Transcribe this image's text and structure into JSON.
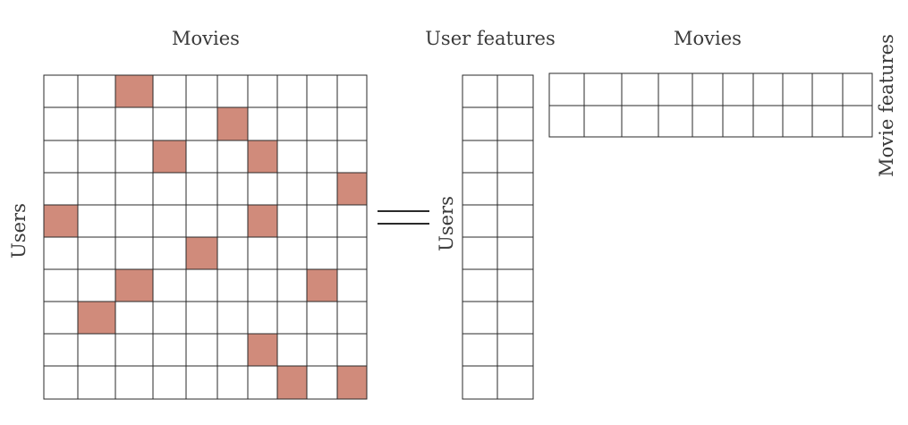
{
  "labels": {
    "ratings_top": "Movies",
    "ratings_side": "Users",
    "user_top": "User features",
    "user_side": "Users",
    "movie_top": "Movies",
    "movie_side": "Movie features"
  },
  "ratings_matrix": {
    "rows": 10,
    "cols": 10,
    "filled": [
      [
        0,
        2
      ],
      [
        1,
        5
      ],
      [
        2,
        3
      ],
      [
        2,
        6
      ],
      [
        3,
        9
      ],
      [
        4,
        0
      ],
      [
        4,
        6
      ],
      [
        5,
        4
      ],
      [
        6,
        2
      ],
      [
        6,
        8
      ],
      [
        7,
        1
      ],
      [
        8,
        6
      ],
      [
        9,
        7
      ],
      [
        9,
        9
      ]
    ]
  },
  "user_matrix": {
    "rows": 10,
    "cols": 2
  },
  "movie_matrix": {
    "rows": 2,
    "cols": 10
  },
  "colors": {
    "filled": "#d08b7b",
    "empty": "#ffffff",
    "line": "#2a2a2a",
    "text": "#3a3a3a"
  }
}
